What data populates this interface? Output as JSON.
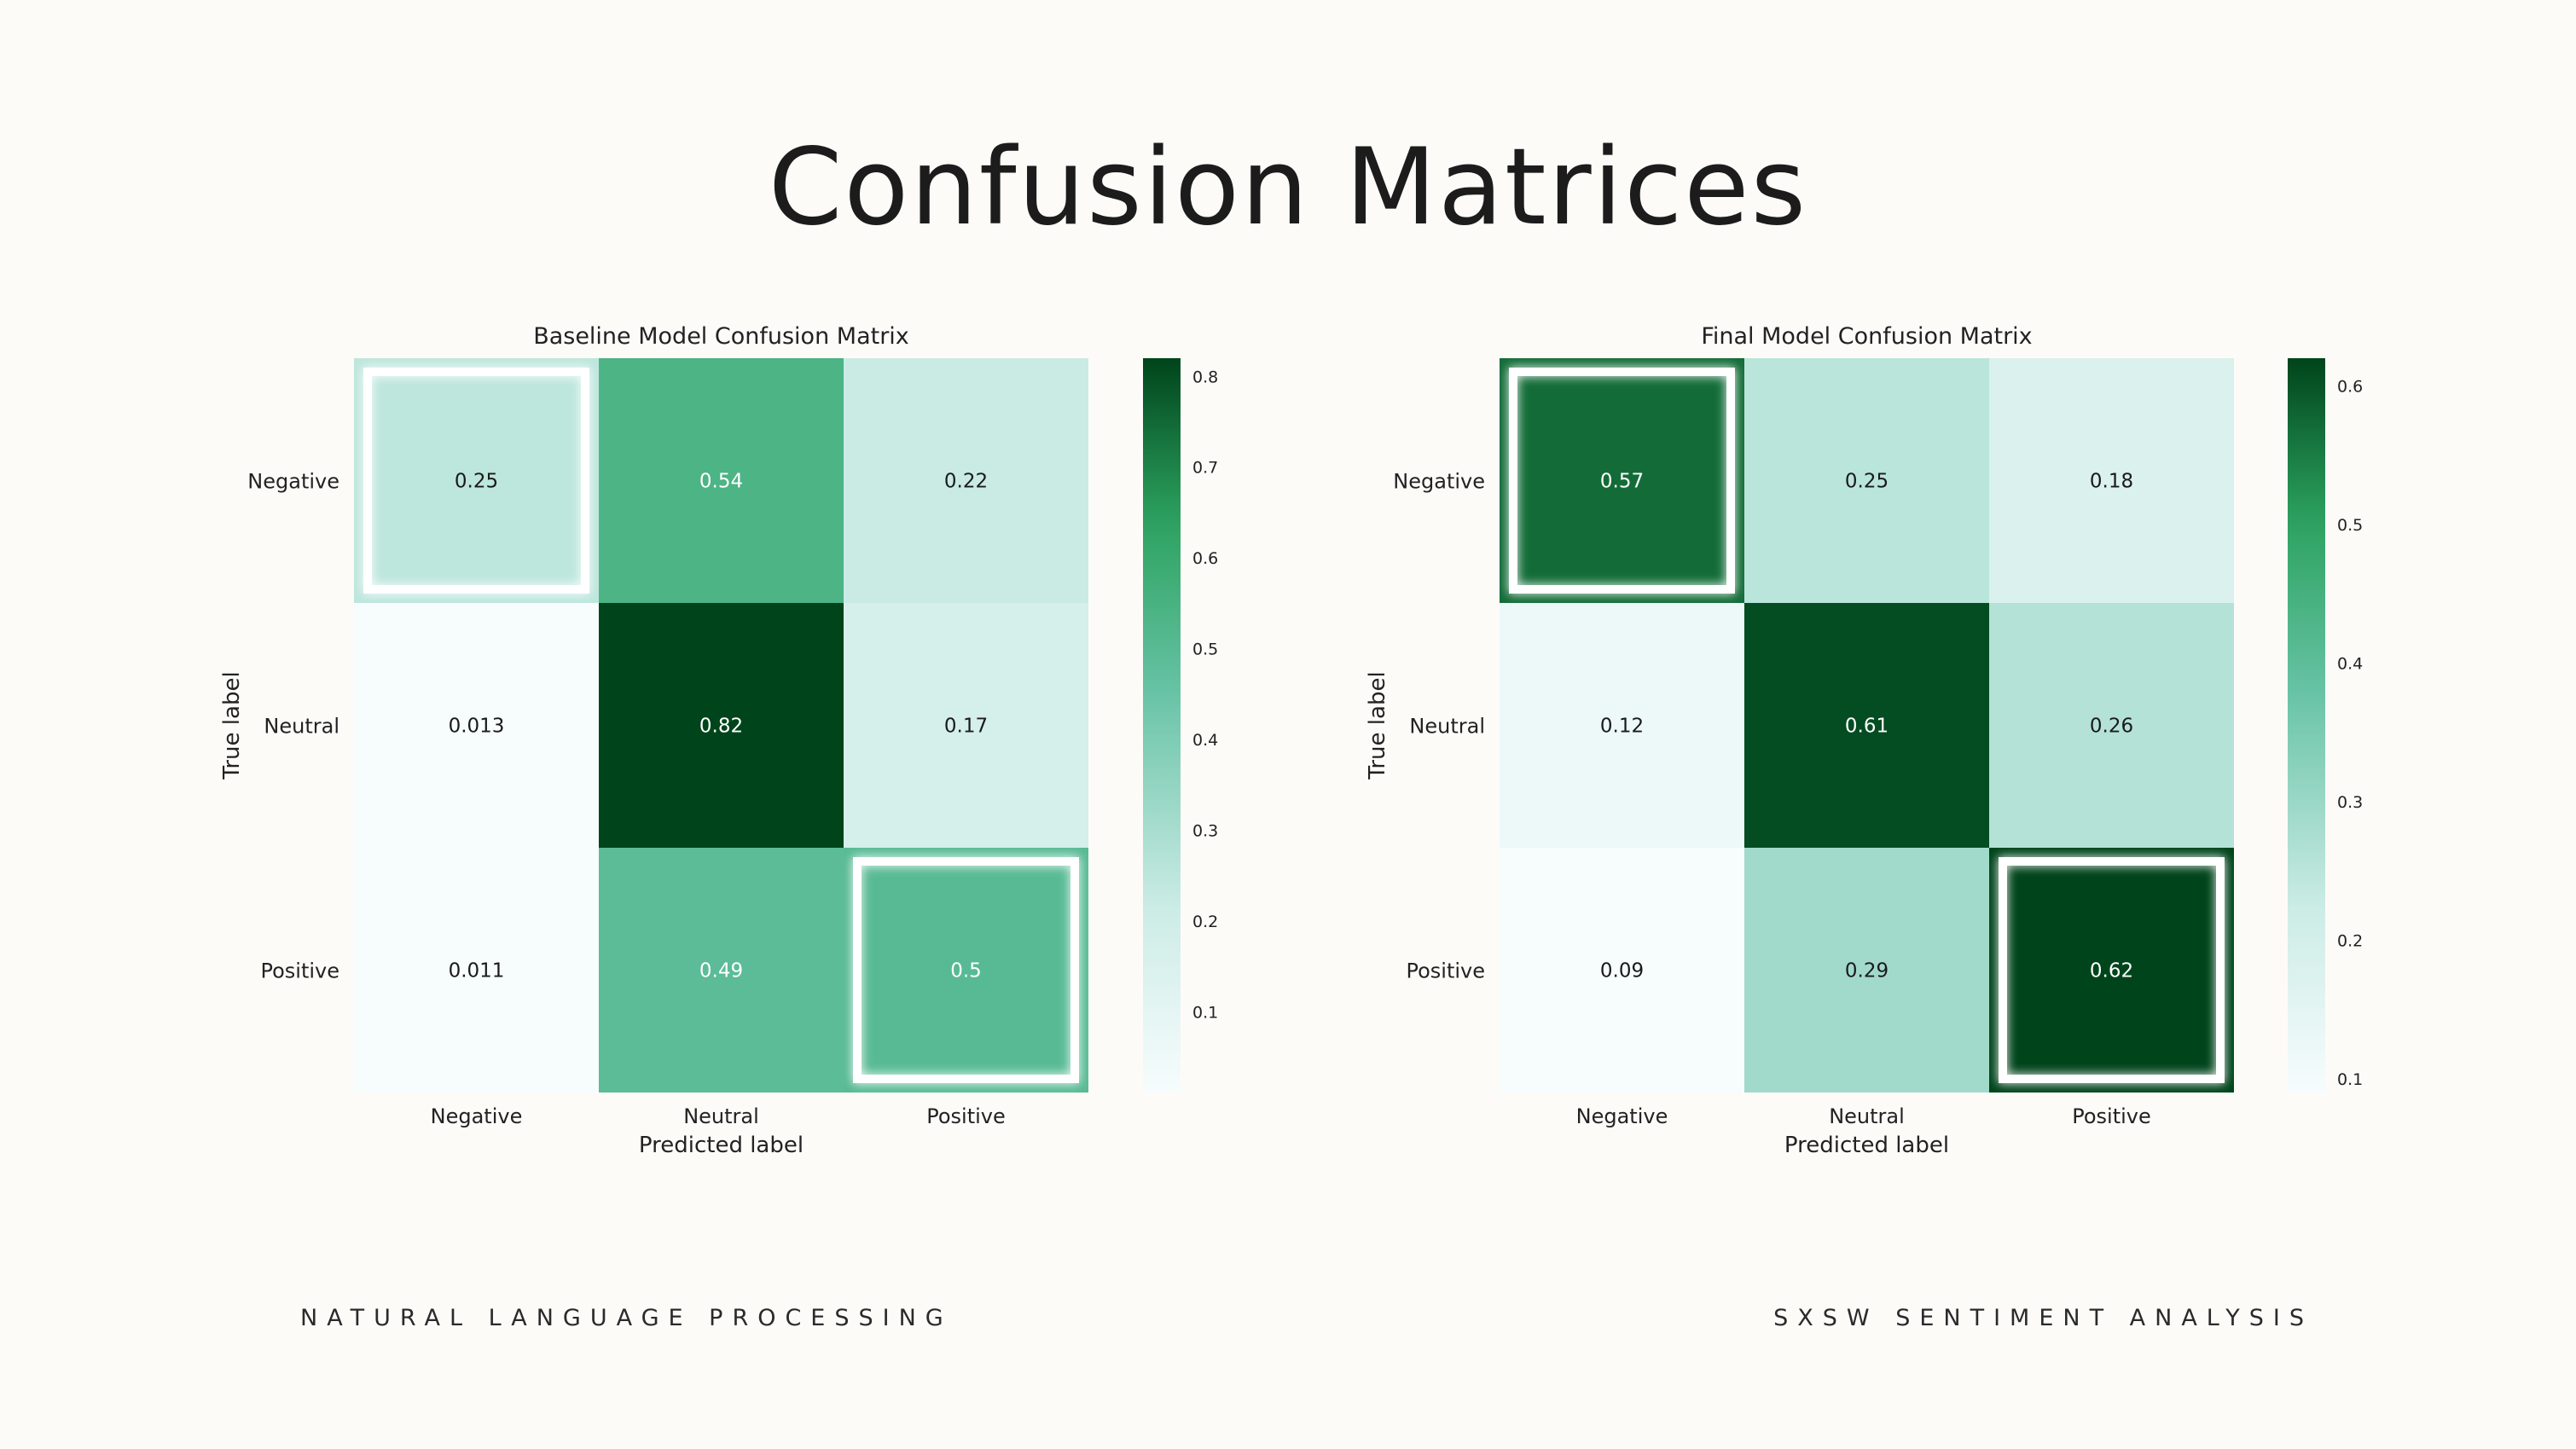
{
  "slide": {
    "title": "Confusion Matrices",
    "footer_left": "NATURAL LANGUAGE PROCESSING",
    "footer_right": "SXSW SENTIMENT ANALYSIS"
  },
  "colors": {
    "low": "#f7fcfd",
    "mid_low": "#ccece6",
    "mid": "#66c2a4",
    "mid_high": "#2ca25f",
    "high": "#00441b",
    "highlight": "#ffffff"
  },
  "chart_data": [
    {
      "type": "heatmap",
      "title": "Baseline Model Confusion Matrix",
      "xlabel": "Predicted label",
      "ylabel": "True label",
      "x_categories": [
        "Negative",
        "Neutral",
        "Positive"
      ],
      "y_categories": [
        "Negative",
        "Neutral",
        "Positive"
      ],
      "values": [
        [
          0.25,
          0.54,
          0.22
        ],
        [
          0.013,
          0.82,
          0.17
        ],
        [
          0.011,
          0.49,
          0.5
        ]
      ],
      "value_labels": [
        [
          "0.25",
          "0.54",
          "0.22"
        ],
        [
          "0.013",
          "0.82",
          "0.17"
        ],
        [
          "0.011",
          "0.49",
          "0.5"
        ]
      ],
      "colorbar": {
        "range": [
          0.011,
          0.82
        ],
        "ticks": [
          0.1,
          0.2,
          0.3,
          0.4,
          0.5,
          0.6,
          0.7,
          0.8
        ],
        "tick_labels": [
          "0.1",
          "0.2",
          "0.3",
          "0.4",
          "0.5",
          "0.6",
          "0.7",
          "0.8"
        ]
      },
      "highlighted_cells": [
        [
          0,
          0
        ],
        [
          2,
          2
        ]
      ]
    },
    {
      "type": "heatmap",
      "title": "Final Model Confusion Matrix",
      "xlabel": "Predicted label",
      "ylabel": "True label",
      "x_categories": [
        "Negative",
        "Neutral",
        "Positive"
      ],
      "y_categories": [
        "Negative",
        "Neutral",
        "Positive"
      ],
      "values": [
        [
          0.57,
          0.25,
          0.18
        ],
        [
          0.12,
          0.61,
          0.26
        ],
        [
          0.09,
          0.29,
          0.62
        ]
      ],
      "value_labels": [
        [
          "0.57",
          "0.25",
          "0.18"
        ],
        [
          "0.12",
          "0.61",
          "0.26"
        ],
        [
          "0.09",
          "0.29",
          "0.62"
        ]
      ],
      "colorbar": {
        "range": [
          0.09,
          0.62
        ],
        "ticks": [
          0.1,
          0.2,
          0.3,
          0.4,
          0.5,
          0.6
        ],
        "tick_labels": [
          "0.1",
          "0.2",
          "0.3",
          "0.4",
          "0.5",
          "0.6"
        ]
      },
      "highlighted_cells": [
        [
          0,
          0
        ],
        [
          2,
          2
        ]
      ]
    }
  ]
}
